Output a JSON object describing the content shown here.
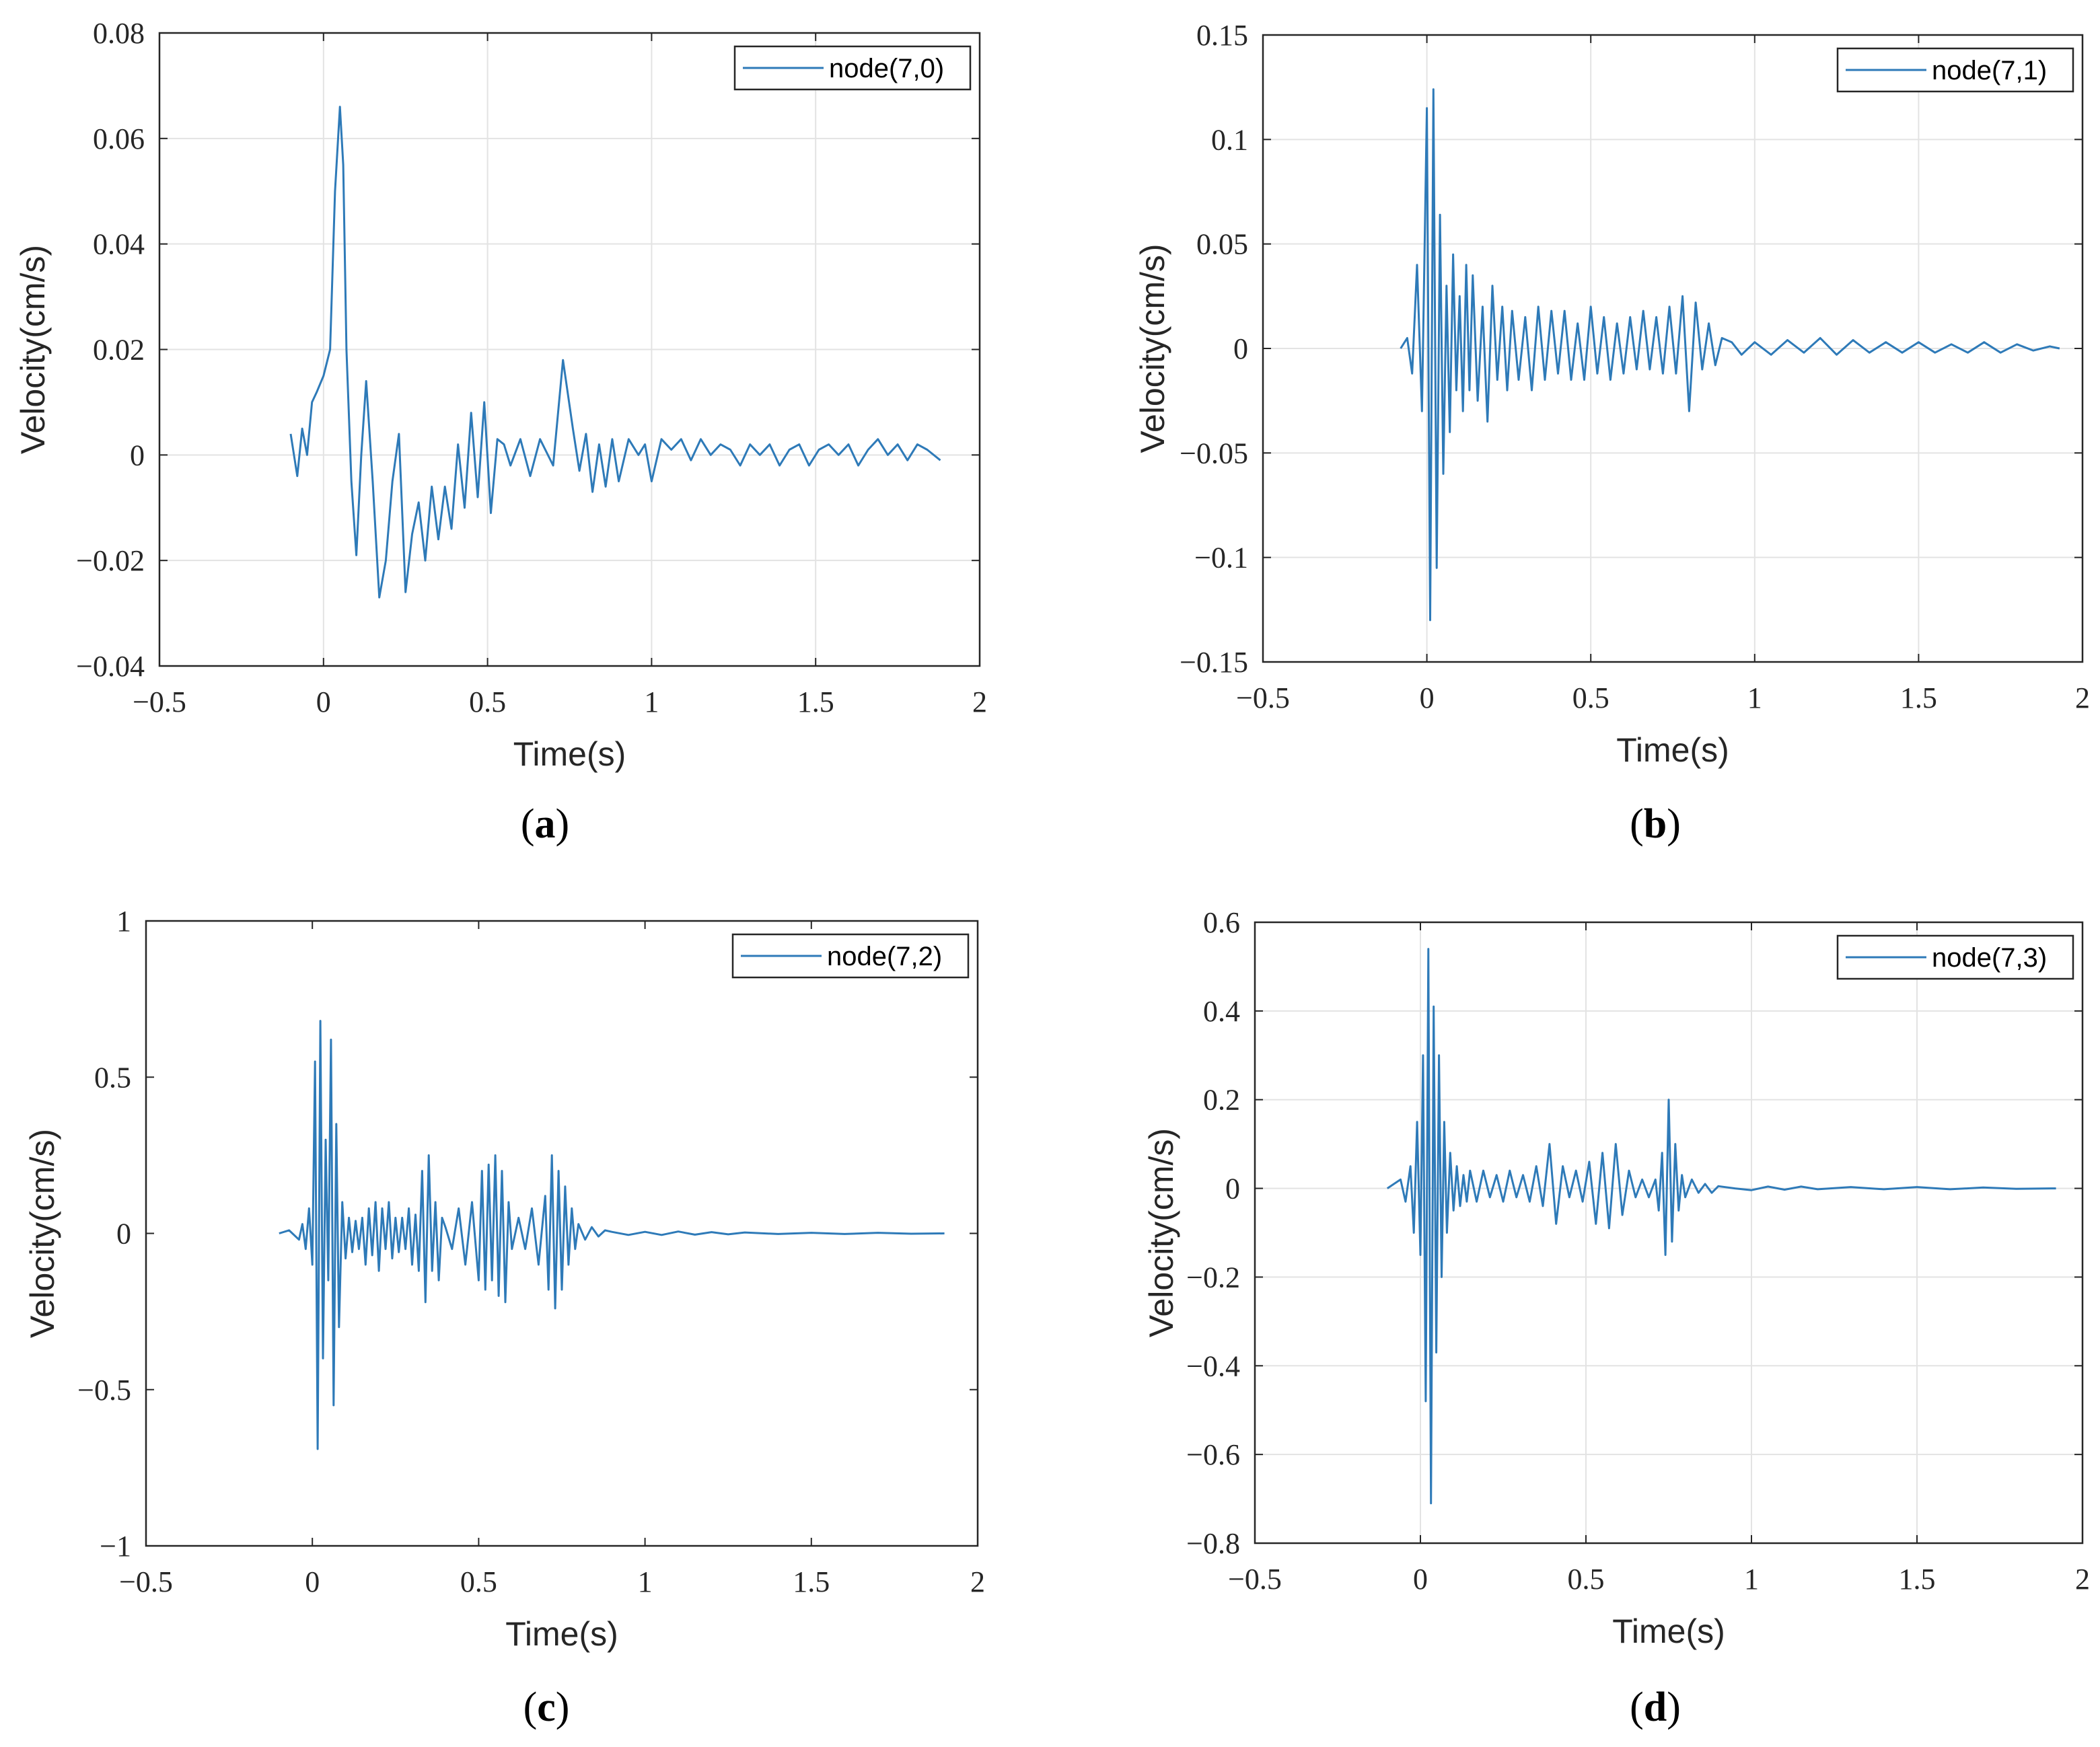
{
  "colors": {
    "line": "#2e7ab8",
    "grid": "#e3e3e3",
    "axis": "#262626",
    "text": "#262626"
  },
  "chart_data": [
    {
      "id": "a",
      "type": "line",
      "caption_letter": "a",
      "xlabel": "Time(s)",
      "ylabel": "Velocity(cm/s)",
      "xlim": [
        -0.5,
        2
      ],
      "ylim": [
        -0.04,
        0.08
      ],
      "xticks": [
        -0.5,
        0,
        0.5,
        1,
        1.5,
        2
      ],
      "xtick_labels": [
        "−0.5",
        "0",
        "0.5",
        "1",
        "1.5",
        "2"
      ],
      "yticks": [
        -0.04,
        -0.02,
        0,
        0.02,
        0.04,
        0.06,
        0.08
      ],
      "ytick_labels": [
        "−0.04",
        "−0.02",
        "0",
        "0.02",
        "0.04",
        "0.06",
        "0.08"
      ],
      "grid": true,
      "legend": "node(7,0)",
      "legend_position": "top-right",
      "series": [
        {
          "name": "node(7,0)",
          "x": [
            -0.1,
            -0.08,
            -0.065,
            -0.05,
            -0.035,
            -0.02,
            0.0,
            0.02,
            0.035,
            0.05,
            0.06,
            0.07,
            0.085,
            0.1,
            0.115,
            0.13,
            0.15,
            0.17,
            0.19,
            0.21,
            0.23,
            0.25,
            0.27,
            0.29,
            0.31,
            0.33,
            0.35,
            0.37,
            0.39,
            0.41,
            0.43,
            0.45,
            0.47,
            0.49,
            0.51,
            0.53,
            0.55,
            0.57,
            0.6,
            0.63,
            0.66,
            0.7,
            0.73,
            0.76,
            0.78,
            0.8,
            0.82,
            0.84,
            0.86,
            0.88,
            0.9,
            0.93,
            0.96,
            0.98,
            1.0,
            1.03,
            1.06,
            1.09,
            1.12,
            1.15,
            1.18,
            1.21,
            1.24,
            1.27,
            1.3,
            1.33,
            1.36,
            1.39,
            1.42,
            1.45,
            1.48,
            1.51,
            1.54,
            1.57,
            1.6,
            1.63,
            1.66,
            1.69,
            1.72,
            1.75,
            1.78,
            1.81,
            1.84,
            1.88
          ],
          "values": [
            0.004,
            -0.004,
            0.005,
            0.0,
            0.01,
            0.012,
            0.015,
            0.02,
            0.05,
            0.066,
            0.055,
            0.02,
            -0.005,
            -0.019,
            0.0,
            0.014,
            -0.005,
            -0.027,
            -0.02,
            -0.005,
            0.004,
            -0.026,
            -0.015,
            -0.009,
            -0.02,
            -0.006,
            -0.016,
            -0.006,
            -0.014,
            0.002,
            -0.01,
            0.008,
            -0.008,
            0.01,
            -0.011,
            0.003,
            0.002,
            -0.002,
            0.003,
            -0.004,
            0.003,
            -0.002,
            0.018,
            0.005,
            -0.003,
            0.004,
            -0.007,
            0.002,
            -0.006,
            0.003,
            -0.005,
            0.003,
            0.0,
            0.002,
            -0.005,
            0.003,
            0.001,
            0.003,
            -0.001,
            0.003,
            0.0,
            0.002,
            0.001,
            -0.002,
            0.002,
            0.0,
            0.002,
            -0.002,
            0.001,
            0.002,
            -0.002,
            0.001,
            0.002,
            0.0,
            0.002,
            -0.002,
            0.001,
            0.003,
            0.0,
            0.002,
            -0.001,
            0.002,
            0.001,
            -0.001
          ]
        }
      ]
    },
    {
      "id": "b",
      "type": "line",
      "caption_letter": "b",
      "xlabel": "Time(s)",
      "ylabel": "Velocity(cm/s)",
      "xlim": [
        -0.5,
        2
      ],
      "ylim": [
        -0.15,
        0.15
      ],
      "xticks": [
        -0.5,
        0,
        0.5,
        1,
        1.5,
        2
      ],
      "xtick_labels": [
        "−0.5",
        "0",
        "0.5",
        "1",
        "1.5",
        "2"
      ],
      "yticks": [
        -0.15,
        -0.1,
        -0.05,
        0,
        0.05,
        0.1,
        0.15
      ],
      "ytick_labels": [
        "−0.15",
        "−0.1",
        "−0.05",
        "0",
        "0.05",
        "0.1",
        "0.15"
      ],
      "grid": true,
      "legend": "node(7,1)",
      "legend_position": "top-right",
      "series": [
        {
          "name": "node(7,1)",
          "x": [
            -0.08,
            -0.06,
            -0.045,
            -0.03,
            -0.015,
            0.0,
            0.01,
            0.02,
            0.03,
            0.04,
            0.05,
            0.06,
            0.07,
            0.08,
            0.09,
            0.1,
            0.11,
            0.12,
            0.13,
            0.14,
            0.155,
            0.17,
            0.185,
            0.2,
            0.215,
            0.23,
            0.245,
            0.26,
            0.28,
            0.3,
            0.32,
            0.34,
            0.36,
            0.38,
            0.4,
            0.42,
            0.44,
            0.46,
            0.48,
            0.5,
            0.52,
            0.54,
            0.56,
            0.58,
            0.6,
            0.62,
            0.64,
            0.66,
            0.68,
            0.7,
            0.72,
            0.74,
            0.76,
            0.78,
            0.8,
            0.82,
            0.84,
            0.86,
            0.88,
            0.9,
            0.93,
            0.96,
            1.0,
            1.05,
            1.1,
            1.15,
            1.2,
            1.25,
            1.3,
            1.35,
            1.4,
            1.45,
            1.5,
            1.55,
            1.6,
            1.65,
            1.7,
            1.75,
            1.8,
            1.85,
            1.9,
            1.93
          ],
          "values": [
            0.0,
            0.005,
            -0.012,
            0.04,
            -0.03,
            0.115,
            -0.13,
            0.124,
            -0.105,
            0.064,
            -0.06,
            0.03,
            -0.04,
            0.045,
            -0.02,
            0.025,
            -0.03,
            0.04,
            -0.02,
            0.035,
            -0.025,
            0.02,
            -0.035,
            0.03,
            -0.015,
            0.02,
            -0.02,
            0.018,
            -0.015,
            0.015,
            -0.02,
            0.02,
            -0.015,
            0.018,
            -0.012,
            0.018,
            -0.015,
            0.012,
            -0.015,
            0.02,
            -0.012,
            0.015,
            -0.015,
            0.012,
            -0.012,
            0.015,
            -0.01,
            0.018,
            -0.01,
            0.015,
            -0.012,
            0.02,
            -0.012,
            0.025,
            -0.03,
            0.022,
            -0.01,
            0.012,
            -0.008,
            0.005,
            0.003,
            -0.003,
            0.003,
            -0.003,
            0.004,
            -0.002,
            0.005,
            -0.003,
            0.004,
            -0.002,
            0.003,
            -0.002,
            0.003,
            -0.002,
            0.002,
            -0.002,
            0.003,
            -0.002,
            0.002,
            -0.001,
            0.001,
            0.0
          ]
        }
      ]
    },
    {
      "id": "c",
      "type": "line",
      "caption_letter": "c",
      "xlabel": "Time(s)",
      "ylabel": "Velocity(cm/s)",
      "xlim": [
        -0.5,
        2
      ],
      "ylim": [
        -1,
        1
      ],
      "xticks": [
        -0.5,
        0,
        0.5,
        1,
        1.5,
        2
      ],
      "xtick_labels": [
        "−0.5",
        "0",
        "0.5",
        "1",
        "1.5",
        "2"
      ],
      "yticks": [
        -1,
        -0.5,
        0,
        0.5,
        1
      ],
      "ytick_labels": [
        "−1",
        "−0.5",
        "0",
        "0.5",
        "1"
      ],
      "grid": false,
      "legend": "node(7,2)",
      "legend_position": "top-right",
      "series": [
        {
          "name": "node(7,2)",
          "x": [
            -0.1,
            -0.07,
            -0.04,
            -0.03,
            -0.02,
            -0.01,
            0.0,
            0.008,
            0.016,
            0.024,
            0.032,
            0.04,
            0.048,
            0.056,
            0.064,
            0.072,
            0.08,
            0.09,
            0.1,
            0.11,
            0.12,
            0.13,
            0.14,
            0.15,
            0.16,
            0.17,
            0.18,
            0.19,
            0.2,
            0.21,
            0.22,
            0.23,
            0.24,
            0.25,
            0.26,
            0.27,
            0.28,
            0.29,
            0.3,
            0.31,
            0.32,
            0.33,
            0.34,
            0.35,
            0.36,
            0.37,
            0.38,
            0.39,
            0.4,
            0.42,
            0.44,
            0.46,
            0.48,
            0.5,
            0.51,
            0.52,
            0.53,
            0.54,
            0.55,
            0.56,
            0.57,
            0.58,
            0.59,
            0.6,
            0.62,
            0.64,
            0.66,
            0.68,
            0.7,
            0.71,
            0.72,
            0.73,
            0.74,
            0.75,
            0.76,
            0.77,
            0.78,
            0.79,
            0.8,
            0.82,
            0.84,
            0.86,
            0.88,
            0.9,
            0.95,
            1.0,
            1.05,
            1.1,
            1.15,
            1.2,
            1.25,
            1.3,
            1.4,
            1.5,
            1.6,
            1.7,
            1.8,
            1.9
          ],
          "values": [
            0.0,
            0.01,
            -0.02,
            0.03,
            -0.05,
            0.08,
            -0.1,
            0.55,
            -0.69,
            0.68,
            -0.4,
            0.3,
            -0.15,
            0.62,
            -0.55,
            0.35,
            -0.3,
            0.1,
            -0.08,
            0.05,
            -0.06,
            0.04,
            -0.05,
            0.05,
            -0.1,
            0.08,
            -0.07,
            0.1,
            -0.12,
            0.08,
            -0.05,
            0.1,
            -0.08,
            0.05,
            -0.06,
            0.05,
            -0.05,
            0.08,
            -0.1,
            0.06,
            -0.12,
            0.2,
            -0.22,
            0.25,
            -0.12,
            0.1,
            -0.15,
            0.05,
            0.02,
            -0.05,
            0.08,
            -0.1,
            0.1,
            -0.15,
            0.2,
            -0.18,
            0.22,
            -0.15,
            0.25,
            -0.2,
            0.2,
            -0.22,
            0.1,
            -0.05,
            0.05,
            -0.05,
            0.08,
            -0.1,
            0.12,
            -0.18,
            0.25,
            -0.24,
            0.2,
            -0.18,
            0.15,
            -0.1,
            0.08,
            -0.05,
            0.03,
            -0.02,
            0.02,
            -0.01,
            0.01,
            0.005,
            -0.005,
            0.005,
            -0.005,
            0.006,
            -0.004,
            0.004,
            -0.003,
            0.003,
            -0.002,
            0.002,
            -0.002,
            0.002,
            -0.001,
            0.0
          ]
        }
      ]
    },
    {
      "id": "d",
      "type": "line",
      "caption_letter": "d",
      "xlabel": "Time(s)",
      "ylabel": "Velocity(cm/s)",
      "xlim": [
        -0.5,
        2
      ],
      "ylim": [
        -0.8,
        0.6
      ],
      "xticks": [
        -0.5,
        0,
        0.5,
        1,
        1.5,
        2
      ],
      "xtick_labels": [
        "−0.5",
        "0",
        "0.5",
        "1",
        "1.5",
        "2"
      ],
      "yticks": [
        -0.8,
        -0.6,
        -0.4,
        -0.2,
        0,
        0.2,
        0.4,
        0.6
      ],
      "ytick_labels": [
        "−0.8",
        "−0.6",
        "−0.4",
        "−0.2",
        "0",
        "0.2",
        "0.4",
        "0.6"
      ],
      "grid": true,
      "legend": "node(7,3)",
      "legend_position": "top-right",
      "series": [
        {
          "name": "node(7,3)",
          "x": [
            -0.1,
            -0.08,
            -0.06,
            -0.045,
            -0.03,
            -0.02,
            -0.01,
            0.0,
            0.008,
            0.016,
            0.024,
            0.032,
            0.04,
            0.048,
            0.056,
            0.064,
            0.072,
            0.08,
            0.09,
            0.1,
            0.11,
            0.12,
            0.13,
            0.14,
            0.15,
            0.17,
            0.19,
            0.21,
            0.23,
            0.25,
            0.27,
            0.29,
            0.31,
            0.33,
            0.35,
            0.37,
            0.39,
            0.41,
            0.43,
            0.45,
            0.47,
            0.49,
            0.51,
            0.53,
            0.55,
            0.57,
            0.59,
            0.61,
            0.63,
            0.65,
            0.67,
            0.69,
            0.71,
            0.72,
            0.73,
            0.74,
            0.75,
            0.76,
            0.77,
            0.78,
            0.79,
            0.8,
            0.82,
            0.84,
            0.86,
            0.88,
            0.9,
            0.95,
            1.0,
            1.05,
            1.1,
            1.15,
            1.2,
            1.3,
            1.4,
            1.5,
            1.6,
            1.7,
            1.8,
            1.92
          ],
          "values": [
            0.0,
            0.01,
            0.02,
            -0.03,
            0.05,
            -0.1,
            0.15,
            -0.15,
            0.3,
            -0.48,
            0.54,
            -0.71,
            0.41,
            -0.37,
            0.3,
            -0.2,
            0.15,
            -0.1,
            0.08,
            -0.05,
            0.05,
            -0.04,
            0.03,
            -0.03,
            0.04,
            -0.03,
            0.04,
            -0.02,
            0.03,
            -0.03,
            0.04,
            -0.02,
            0.03,
            -0.03,
            0.05,
            -0.04,
            0.1,
            -0.08,
            0.05,
            -0.02,
            0.04,
            -0.03,
            0.06,
            -0.08,
            0.08,
            -0.09,
            0.1,
            -0.06,
            0.04,
            -0.02,
            0.02,
            -0.02,
            0.02,
            -0.05,
            0.08,
            -0.15,
            0.2,
            -0.12,
            0.1,
            -0.05,
            0.03,
            -0.02,
            0.02,
            -0.01,
            0.01,
            -0.01,
            0.005,
            0.0,
            -0.004,
            0.004,
            -0.003,
            0.004,
            -0.002,
            0.003,
            -0.002,
            0.003,
            -0.002,
            0.002,
            -0.001,
            0.0
          ]
        }
      ]
    }
  ]
}
